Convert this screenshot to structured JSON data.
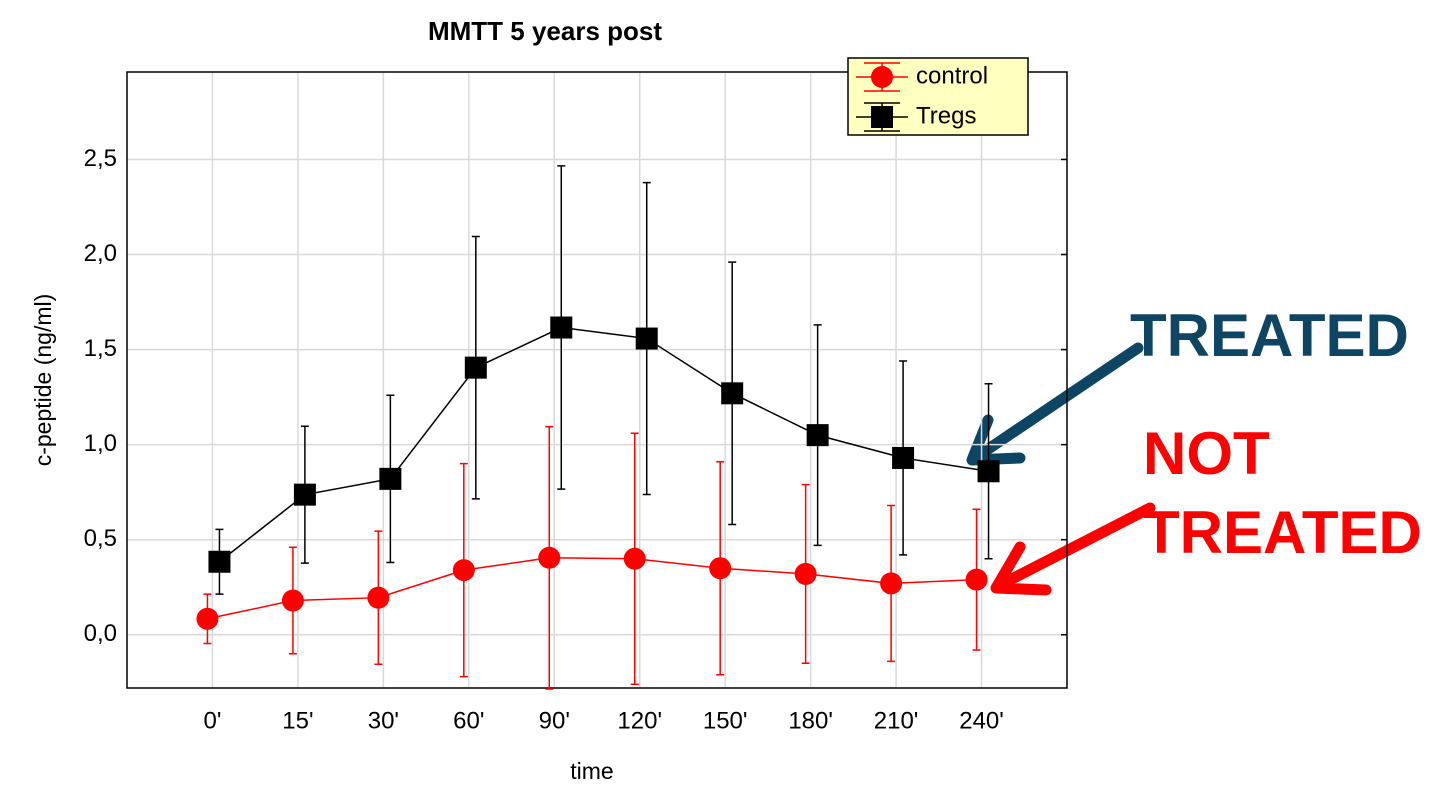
{
  "chart_data": {
    "type": "line",
    "title": "MMTT 5 years post",
    "x_label": "time",
    "y_label": "c-peptide (ng/ml)",
    "categories": [
      "0'",
      "15'",
      "30'",
      "60'",
      "90'",
      "120'",
      "150'",
      "180'",
      "210'",
      "240'"
    ],
    "series": [
      {
        "name": "control",
        "color": "#ff0000",
        "marker": "circle",
        "values": [
          0.084,
          0.18,
          0.195,
          0.34,
          0.405,
          0.4,
          0.35,
          0.32,
          0.27,
          0.29
        ],
        "errors": [
          0.13,
          0.28,
          0.35,
          0.56,
          0.69,
          0.66,
          0.56,
          0.47,
          0.41,
          0.37
        ]
      },
      {
        "name": "Tregs",
        "color": "#000000",
        "marker": "square",
        "values": [
          0.384,
          0.737,
          0.82,
          1.405,
          1.616,
          1.558,
          1.27,
          1.05,
          0.93,
          0.86
        ],
        "errors": [
          0.17,
          0.36,
          0.44,
          0.69,
          0.85,
          0.82,
          0.69,
          0.58,
          0.51,
          0.46
        ]
      }
    ],
    "ylim": [
      -0.28,
      2.96
    ],
    "yticks": [
      {
        "value": 0,
        "label": "0,0"
      },
      {
        "value": 0.5,
        "label": "0,5"
      },
      {
        "value": 1,
        "label": "1,0"
      },
      {
        "value": 1.5,
        "label": "1,5"
      },
      {
        "value": 2,
        "label": "2,0"
      },
      {
        "value": 2.5,
        "label": "2,5"
      }
    ],
    "grid": true,
    "legend": "top-right",
    "annotations": [
      {
        "lines": [
          "TREATED"
        ],
        "color": "#0e4562"
      },
      {
        "lines": [
          "NOT",
          "TREATED"
        ],
        "color": "#ff0000"
      }
    ]
  }
}
